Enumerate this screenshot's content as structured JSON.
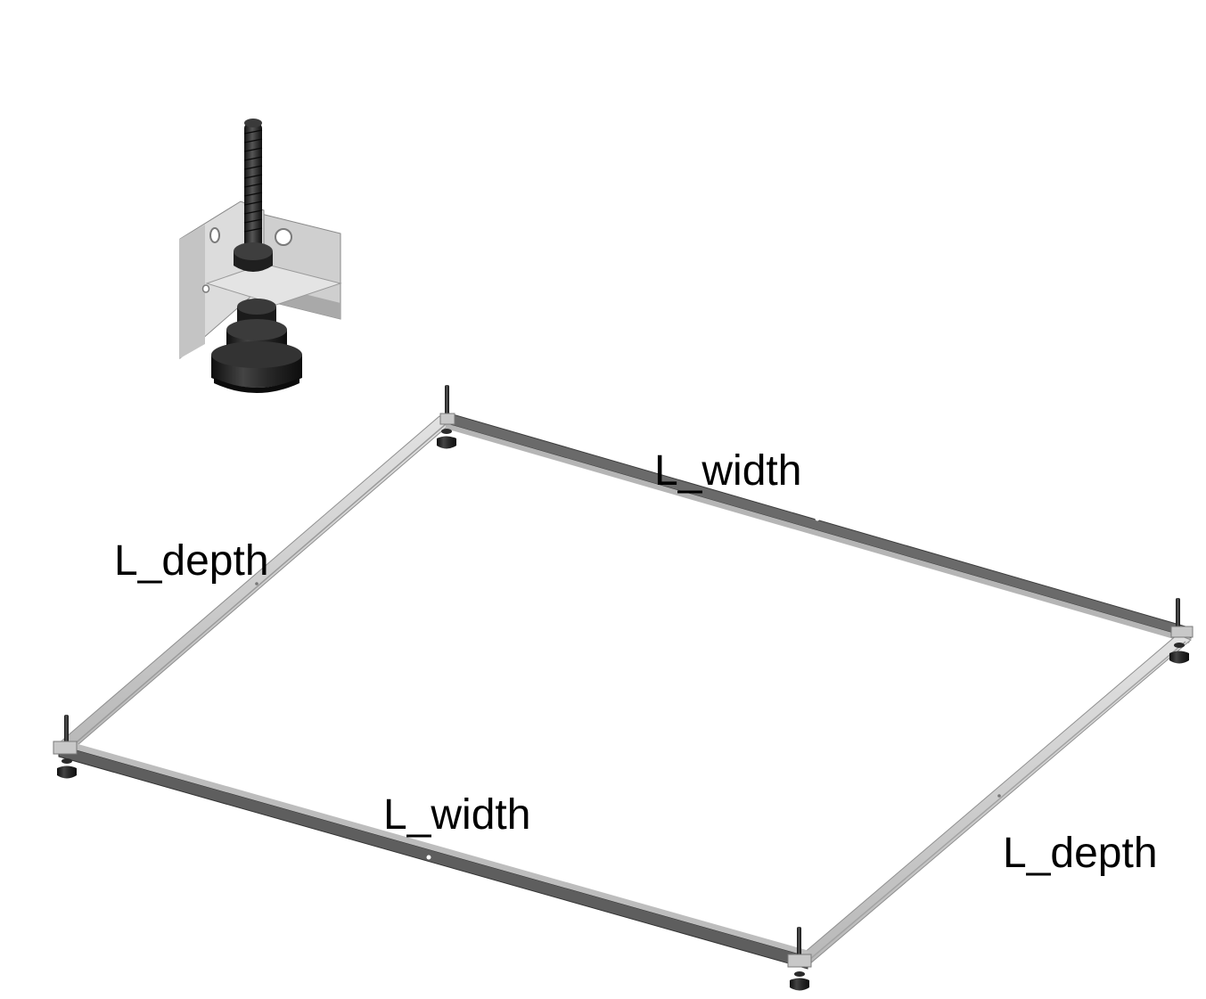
{
  "labels": {
    "top_width": "L_width",
    "bottom_width": "L_width",
    "left_depth": "L_depth",
    "right_depth": "L_depth"
  },
  "colors": {
    "rail_light": "#d4d4d4",
    "rail_mid": "#a3a3a3",
    "rail_dark": "#5e5e5e",
    "foot_dark": "#1c1c1c",
    "foot_mid": "#3c3c3c",
    "bolt": "#2a2a2a"
  }
}
